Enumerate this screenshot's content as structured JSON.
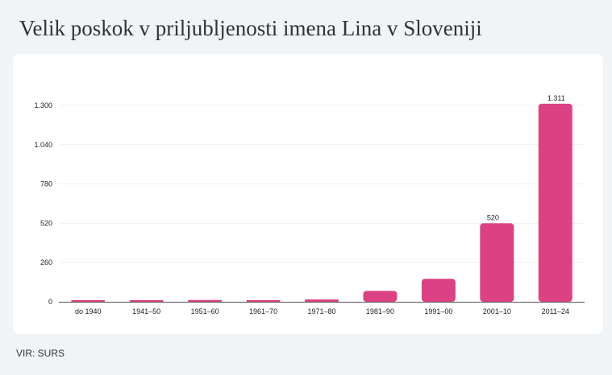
{
  "title": "Velik poskok v priljubljenosti imena Lina v Sloveniji",
  "source": "VIR: SURS",
  "colors": {
    "bar": "#dc4283",
    "grid": "#f0f0f0",
    "axis": "#555555"
  },
  "chart_data": {
    "type": "bar",
    "categories": [
      "do 1940",
      "1941–50",
      "1951–60",
      "1961–70",
      "1971–80",
      "1981–90",
      "1991–00",
      "2001–10",
      "2011–24"
    ],
    "values": [
      8,
      9,
      12,
      4,
      15,
      72,
      152,
      520,
      1311
    ],
    "data_labels": [
      "",
      "",
      "",
      "",
      "",
      "",
      "",
      "520",
      "1.311"
    ],
    "y_ticks": [
      0,
      260,
      520,
      780,
      1040,
      1300
    ],
    "y_tick_labels": [
      "0",
      "260",
      "520",
      "780",
      "1.040",
      "1.300"
    ],
    "ylim": [
      0,
      1300
    ],
    "grid": true,
    "legend": "none"
  }
}
